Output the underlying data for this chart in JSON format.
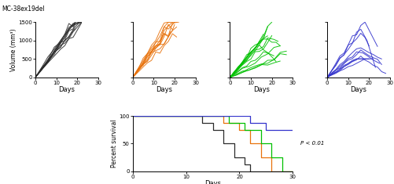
{
  "title": "MC-38ex19del",
  "colors": {
    "black": "#2b2b2b",
    "orange": "#E8720C",
    "green": "#00C000",
    "blue": "#3333CC"
  },
  "tumor_xlim": [
    0,
    30
  ],
  "tumor_ylim": [
    0,
    1500
  ],
  "tumor_yticks": [
    0,
    500,
    1000,
    1500
  ],
  "tumor_xticks": [
    0,
    10,
    20,
    30
  ],
  "ylabel": "Volume (mm³)",
  "xlabel": "Days",
  "survival_xlim": [
    0,
    30
  ],
  "survival_ylim": [
    0,
    100
  ],
  "survival_yticks": [
    0,
    50,
    100
  ],
  "survival_xticks": [
    0,
    10,
    20,
    30
  ],
  "survival_ylabel": "Percent survival",
  "survival_xlabel": "Days",
  "pvalue_text": "P < 0.01"
}
